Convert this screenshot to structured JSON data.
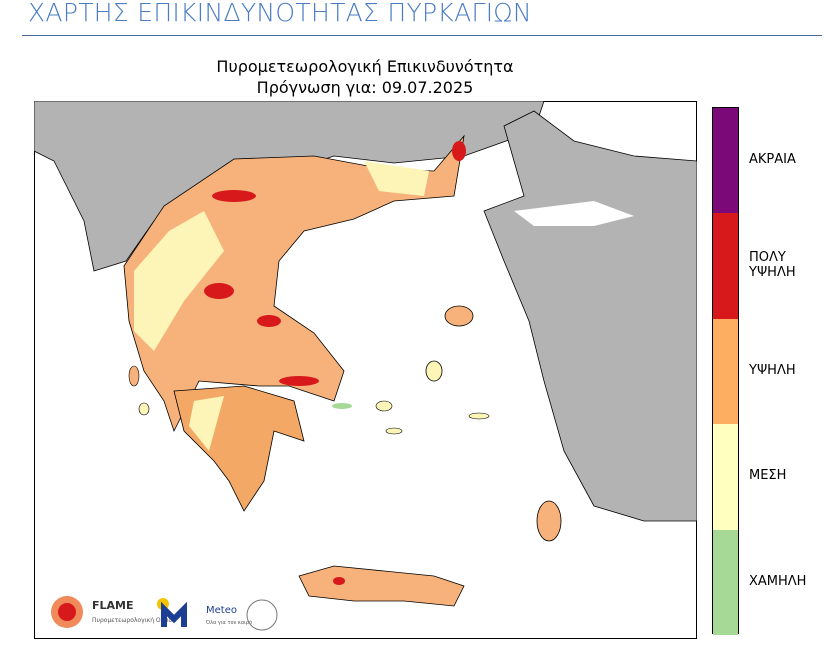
{
  "header": {
    "title": "ΧΑΡΤΗΣ ΕΠΙΚΙΝΔΥΝΟΤΗΤΑΣ ΠΥΡΚΑΓΙΩΝ"
  },
  "map": {
    "title": "Πυρομετεωρολογική Επικινδυνότητα",
    "subtitle": "Πρόγνωση για: 09.07.2025",
    "legend": [
      {
        "label": "ΑΚΡΑΙΑ",
        "color": "#7b0a78"
      },
      {
        "label": "ΠΟΛΥ ΥΨΗΛΗ",
        "color": "#d7191c"
      },
      {
        "label": "ΥΨΗΛΗ",
        "color": "#fdae61"
      },
      {
        "label": "ΜΕΣΗ",
        "color": "#ffffbf"
      },
      {
        "label": "ΧΑΜΗΛΗ",
        "color": "#a6d996"
      }
    ],
    "logos": {
      "flame": "FLAME",
      "flame_sub": "Πυρομετεωρολογική Ομάδα",
      "meteo": "Meteo",
      "meteo_sub": "Όλα για τον καιρό"
    }
  }
}
